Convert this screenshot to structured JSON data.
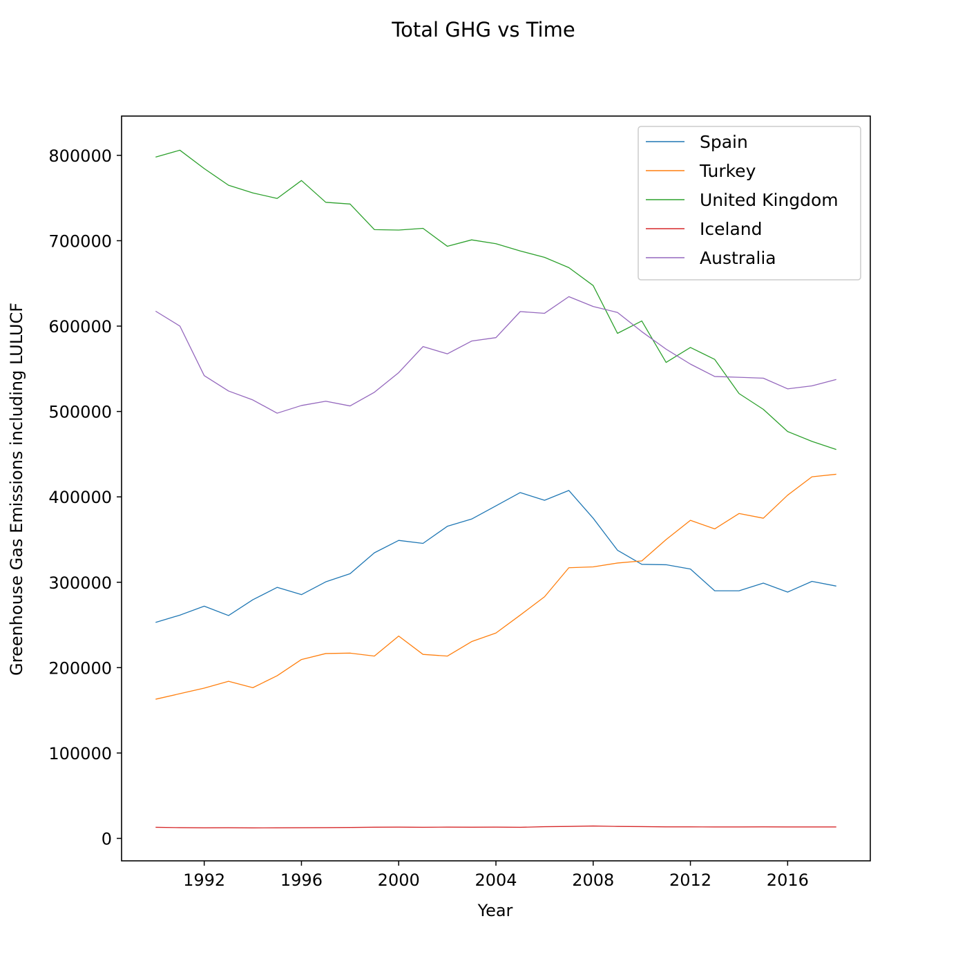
{
  "chart_data": {
    "type": "line",
    "title": "Total GHG vs Time",
    "xlabel": "Year",
    "ylabel": "Greenhouse Gas Emissions including LULUCF",
    "xlim": [
      1988.6,
      2019.4
    ],
    "ylim": [
      -26300,
      846000
    ],
    "xticks": [
      1992,
      1996,
      2000,
      2004,
      2008,
      2012,
      2016
    ],
    "yticks": [
      0,
      100000,
      200000,
      300000,
      400000,
      500000,
      600000,
      700000,
      800000
    ],
    "grid": false,
    "legend_position": "top-right",
    "x": [
      1990,
      1991,
      1992,
      1993,
      1994,
      1995,
      1996,
      1997,
      1998,
      1999,
      2000,
      2001,
      2002,
      2003,
      2004,
      2005,
      2006,
      2007,
      2008,
      2009,
      2010,
      2011,
      2012,
      2013,
      2014,
      2015,
      2016,
      2017,
      2018
    ],
    "series": [
      {
        "name": "Spain",
        "color": "#1f77b4",
        "values": [
          253000,
          261500,
          272000,
          261000,
          279500,
          294000,
          285500,
          300500,
          310000,
          334500,
          349000,
          345500,
          365500,
          374000,
          389500,
          405000,
          396000,
          407500,
          375000,
          337500,
          321000,
          320500,
          315500,
          290000,
          290000,
          299000,
          288500,
          301000,
          295500
        ]
      },
      {
        "name": "Turkey",
        "color": "#ff7f0e",
        "values": [
          163000,
          169500,
          176000,
          184000,
          176500,
          190500,
          209500,
          216500,
          217000,
          213500,
          237000,
          215500,
          213500,
          230500,
          240500,
          261500,
          283000,
          317000,
          318000,
          322500,
          325000,
          350000,
          372500,
          362500,
          380500,
          375000,
          402000,
          423500,
          426500
        ]
      },
      {
        "name": "United Kingdom",
        "color": "#2ca02c",
        "values": [
          798000,
          806000,
          784500,
          765000,
          756000,
          749500,
          770500,
          745000,
          743000,
          713000,
          712500,
          714500,
          693500,
          701000,
          696500,
          688000,
          680500,
          668500,
          647500,
          591500,
          606000,
          557500,
          575000,
          561000,
          521000,
          502500,
          476500,
          465000,
          455500
        ]
      },
      {
        "name": "Iceland",
        "color": "#d62728",
        "values": [
          13000,
          12600,
          12400,
          12500,
          12300,
          12400,
          12500,
          12600,
          12800,
          13100,
          13200,
          13000,
          13200,
          13100,
          13200,
          13000,
          13700,
          14000,
          14500,
          14000,
          13800,
          13500,
          13500,
          13400,
          13400,
          13500,
          13400,
          13400,
          13400
        ]
      },
      {
        "name": "Australia",
        "color": "#9467bd",
        "values": [
          617500,
          600000,
          542000,
          524000,
          513500,
          498000,
          507000,
          512000,
          506500,
          522500,
          545500,
          576000,
          567500,
          582500,
          586500,
          617000,
          615000,
          634500,
          623000,
          616000,
          593500,
          573000,
          555500,
          541000,
          540000,
          539000,
          526500,
          530000,
          537500
        ]
      }
    ]
  }
}
